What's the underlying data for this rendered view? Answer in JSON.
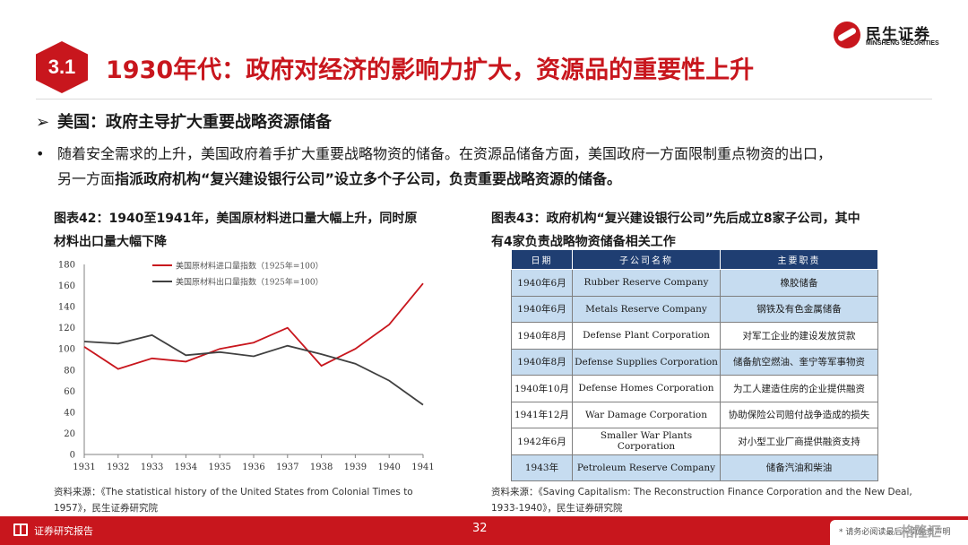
{
  "brand": {
    "cn": "民生证券",
    "en": "MINSHENG SECURITIES"
  },
  "section": {
    "number": "3.1",
    "title": "1930年代：政府对经济的影响力扩大，资源品的重要性上升"
  },
  "subhead": "美国：政府主导扩大重要战略资源储备",
  "bullet": {
    "line1": "随着安全需求的上升，美国政府着手扩大重要战略物资的储备。在资源品储备方面，美国政府一方面限制重点物资的出口，",
    "line2_plain": "另一方面",
    "line2_bold": "指派政府机构“复兴建设银行公司”设立多个子公司，负责重要战略资源的储备。"
  },
  "fig42": {
    "title_line1": "图表42：1940至1941年，美国原材料进口量大幅上升，同时原",
    "title_line2": "材料出口量大幅下降",
    "source_line1": "资料来源：《The statistical history of the United States from Colonial Times to",
    "source_line2": "1957》，民生证券研究院"
  },
  "chart_data": {
    "type": "line",
    "x": [
      1931,
      1932,
      1933,
      1934,
      1935,
      1936,
      1937,
      1938,
      1939,
      1940,
      1941
    ],
    "ylim": [
      0,
      180
    ],
    "yticks": [
      0,
      20,
      40,
      60,
      80,
      100,
      120,
      140,
      160,
      180
    ],
    "legend_position": "top-center",
    "grid": false,
    "series": [
      {
        "name": "美国原材料进口量指数（1925年=100）",
        "color": "#c8161d",
        "values": [
          102,
          81,
          91,
          88,
          100,
          106,
          120,
          84,
          100,
          123,
          162
        ]
      },
      {
        "name": "美国原材料出口量指数（1925年=100）",
        "color": "#404040",
        "values": [
          107,
          105,
          113,
          94,
          97,
          93,
          103,
          95,
          86,
          70,
          47
        ]
      }
    ]
  },
  "fig43": {
    "title_line1": "图表43：政府机构“复兴建设银行公司”先后成立8家子公司，其中",
    "title_line2": "有4家负责战略物资储备相关工作",
    "headers": [
      "日期",
      "子公司名称",
      "主要职责"
    ],
    "rows": [
      {
        "date": "1940年6月",
        "company": "Rubber Reserve Company",
        "duty": "橡胶储备",
        "shaded": true
      },
      {
        "date": "1940年6月",
        "company": "Metals Reserve Company",
        "duty": "钢铁及有色金属储备",
        "shaded": true
      },
      {
        "date": "1940年8月",
        "company": "Defense Plant Corporation",
        "duty": "对军工企业的建设发放贷款",
        "shaded": false
      },
      {
        "date": "1940年8月",
        "company": "Defense Supplies Corporation",
        "duty": "储备航空燃油、奎宁等军事物资",
        "shaded": true
      },
      {
        "date": "1940年10月",
        "company": "Defense Homes Corporation",
        "duty": "为工人建造住房的企业提供融资",
        "shaded": false
      },
      {
        "date": "1941年12月",
        "company": "War Damage Corporation",
        "duty": "协助保险公司赔付战争造成的损失",
        "shaded": false
      },
      {
        "date": "1942年6月",
        "company": "Smaller War Plants Corporation",
        "duty": "对小型工业厂商提供融资支持",
        "shaded": false
      },
      {
        "date": "1943年",
        "company": "Petroleum Reserve Company",
        "duty": "储备汽油和柴油",
        "shaded": true
      }
    ],
    "source_line1": "资料来源：《Saving Capitalism: The Reconstruction Finance Corporation and the New Deal,",
    "source_line2": "1933-1940》，民生证券研究院"
  },
  "footer": {
    "label": "证券研究报告",
    "page": "32",
    "disclaimer": "* 请务必阅读最后一页免责声明",
    "watermark": "格隆汇"
  }
}
